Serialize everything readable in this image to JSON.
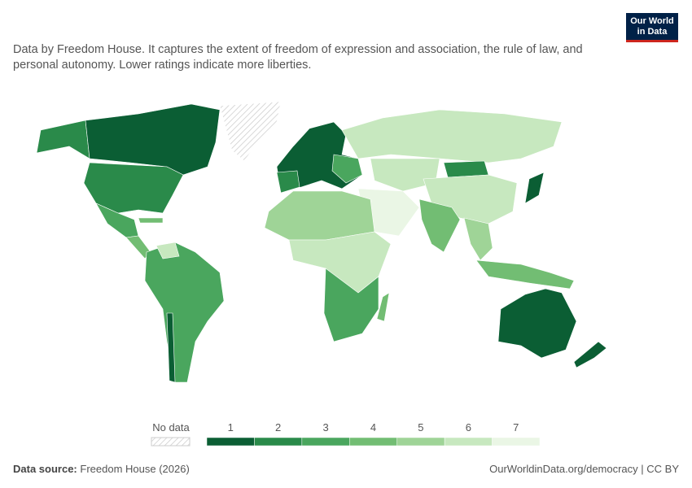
{
  "header": {
    "subtitle": "Data by Freedom House. It captures the extent of freedom of expression and association, the rule of law, and personal autonomy. Lower ratings indicate more liberties.",
    "logo": [
      "Our World",
      "in Data"
    ]
  },
  "legend": {
    "no_data": "No data",
    "items": [
      {
        "label": 1,
        "color": "#0b5e34"
      },
      {
        "label": 2,
        "color": "#2a8a4a"
      },
      {
        "label": 3,
        "color": "#4aa65e"
      },
      {
        "label": 4,
        "color": "#72bd73"
      },
      {
        "label": 5,
        "color": "#9fd497"
      },
      {
        "label": 6,
        "color": "#c7e8bf"
      },
      {
        "label": 7,
        "color": "#eaf6e5"
      }
    ]
  },
  "footer": {
    "source_label": "Data source:",
    "source": "Freedom House (2026)",
    "url": "OurWorldinData.org/democracy | CC BY"
  }
}
